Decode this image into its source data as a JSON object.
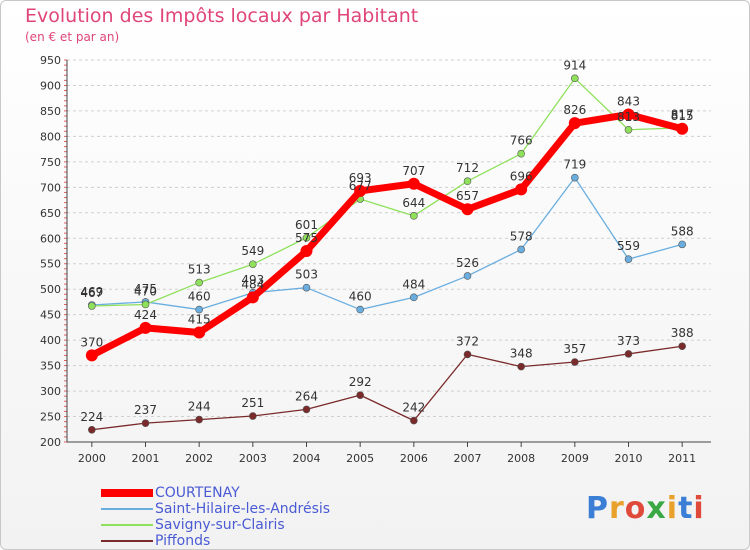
{
  "header": {
    "title": "Evolution des Impôts locaux par Habitant",
    "subtitle": "(en € et par an)"
  },
  "logo": {
    "text": "Proxiti",
    "letter_colors": [
      "#3a7fd5",
      "#e8a12a",
      "#e04a3a",
      "#3aa845",
      "#e8a12a",
      "#3a7fd5",
      "#e04a3a"
    ]
  },
  "chart_data": {
    "type": "line",
    "x": [
      "2000",
      "2001",
      "2002",
      "2003",
      "2004",
      "2005",
      "2006",
      "2007",
      "2008",
      "2009",
      "2010",
      "2011"
    ],
    "ylim": [
      200,
      950
    ],
    "yticks": [
      "200",
      "250",
      "300",
      "350",
      "400",
      "450",
      "500",
      "550",
      "600",
      "650",
      "700",
      "750",
      "800",
      "850",
      "900",
      "950"
    ],
    "grid": "horizontal dashed",
    "legend_position": "bottom-left",
    "series": [
      {
        "name": "COURTENAY",
        "color": "#ff0000",
        "values": [
          370,
          424,
          415,
          484,
          575,
          693,
          707,
          657,
          696,
          826,
          843,
          815
        ]
      },
      {
        "name": "Saint-Hilaire-les-Andrésis",
        "color": "#6aaee0",
        "values": [
          469,
          475,
          460,
          493,
          503,
          460,
          484,
          526,
          578,
          719,
          559,
          588
        ]
      },
      {
        "name": "Savigny-sur-Clairis",
        "color": "#8fe05a",
        "values": [
          467,
          470,
          513,
          549,
          601,
          677,
          644,
          712,
          766,
          914,
          813,
          817
        ]
      },
      {
        "name": "Piffonds",
        "color": "#7a2a2a",
        "values": [
          224,
          237,
          244,
          251,
          264,
          292,
          242,
          372,
          348,
          357,
          373,
          388
        ]
      }
    ]
  }
}
